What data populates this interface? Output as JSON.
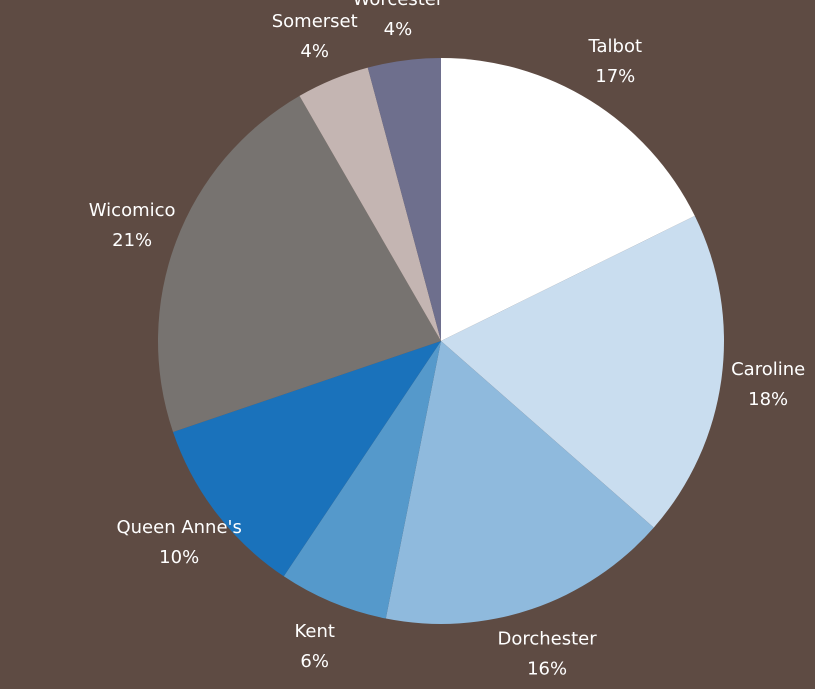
{
  "chart_data": {
    "type": "pie",
    "categories": [
      "Talbot",
      "Caroline",
      "Dorchester",
      "Kent",
      "Queen Anne's",
      "Wicomico",
      "Somerset",
      "Worcester"
    ],
    "values": [
      17,
      18,
      16,
      6,
      10,
      21,
      4,
      4
    ],
    "value_labels": [
      "17%",
      "18%",
      "16%",
      "6%",
      "10%",
      "21%",
      "4%",
      "4%"
    ],
    "colors": [
      "#ffffff",
      "#c9ddef",
      "#8fbadd",
      "#5599cb",
      "#1a72bb",
      "#777370",
      "#c4b5b2",
      "#6e6f8d"
    ]
  }
}
